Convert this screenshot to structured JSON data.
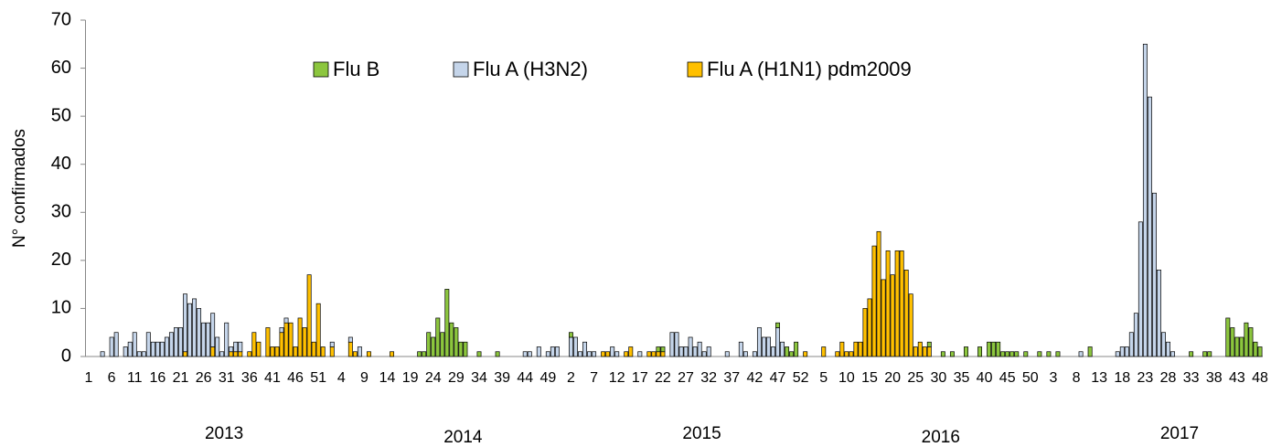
{
  "chart_data": {
    "type": "bar",
    "stacked": true,
    "y_label": "N° confirmados",
    "ylim": [
      0,
      70
    ],
    "yticks": [
      0,
      10,
      20,
      30,
      40,
      50,
      60,
      70
    ],
    "year_labels": [
      "2013",
      "2014",
      "2015",
      "2016",
      "2017"
    ],
    "categories": [
      1,
      null,
      null,
      null,
      null,
      6,
      null,
      null,
      null,
      null,
      11,
      null,
      null,
      null,
      null,
      16,
      null,
      null,
      null,
      null,
      21,
      null,
      null,
      null,
      null,
      26,
      null,
      null,
      null,
      null,
      31,
      null,
      null,
      null,
      null,
      36,
      null,
      null,
      null,
      null,
      41,
      null,
      null,
      null,
      null,
      46,
      null,
      null,
      null,
      null,
      51,
      null,
      null,
      null,
      null,
      4,
      null,
      null,
      null,
      null,
      9,
      null,
      null,
      null,
      null,
      14,
      null,
      null,
      null,
      null,
      19,
      null,
      null,
      null,
      null,
      24,
      null,
      null,
      null,
      null,
      29,
      null,
      null,
      null,
      null,
      34,
      null,
      null,
      null,
      null,
      39,
      null,
      null,
      null,
      null,
      44,
      null,
      null,
      null,
      null,
      49,
      null,
      null,
      null,
      null,
      2,
      null,
      null,
      null,
      null,
      7,
      null,
      null,
      null,
      null,
      12,
      null,
      null,
      null,
      null,
      17,
      null,
      null,
      null,
      null,
      22,
      null,
      null,
      null,
      null,
      27,
      null,
      null,
      null,
      null,
      32,
      null,
      null,
      null,
      null,
      37,
      null,
      null,
      null,
      null,
      42,
      null,
      null,
      null,
      null,
      47,
      null,
      null,
      null,
      null,
      52,
      null,
      null,
      null,
      null,
      5,
      null,
      null,
      null,
      null,
      10,
      null,
      null,
      null,
      null,
      15,
      null,
      null,
      null,
      null,
      20,
      null,
      null,
      null,
      null,
      25,
      null,
      null,
      null,
      null,
      30,
      null,
      null,
      null,
      null,
      35,
      null,
      null,
      null,
      null,
      40,
      null,
      null,
      null,
      null,
      45,
      null,
      null,
      null,
      null,
      50,
      null,
      null,
      null,
      null,
      3,
      null,
      null,
      null,
      null,
      8,
      null,
      null,
      null,
      null,
      13,
      null,
      null,
      null,
      null,
      18,
      null,
      null,
      null,
      null,
      23,
      null,
      null,
      null,
      null,
      28,
      null,
      null,
      null,
      null,
      33,
      null,
      null,
      null,
      null,
      38,
      null,
      null,
      null,
      null,
      43,
      null,
      null,
      null,
      null,
      48
    ],
    "series": [
      {
        "name": "Flu A (H1N1) pdm2009",
        "color": "#ffc000",
        "values": [
          0,
          0,
          0,
          0,
          0,
          0,
          0,
          0,
          0,
          0,
          0,
          0,
          0,
          0,
          0,
          0,
          0,
          0,
          0,
          0,
          0,
          1,
          0,
          0,
          0,
          0,
          0,
          2,
          0,
          0,
          0,
          1,
          1,
          1,
          0,
          1,
          5,
          3,
          0,
          6,
          2,
          2,
          5,
          7,
          7,
          2,
          8,
          6,
          17,
          3,
          11,
          2,
          0,
          2,
          0,
          0,
          0,
          3,
          1,
          0,
          0,
          1,
          0,
          0,
          0,
          0,
          1,
          0,
          0,
          0,
          0,
          0,
          0,
          0,
          0,
          0,
          0,
          0,
          0,
          0,
          0,
          0,
          0,
          0,
          0,
          0,
          0,
          0,
          0,
          0,
          0,
          0,
          0,
          0,
          0,
          0,
          0,
          0,
          0,
          0,
          0,
          0,
          0,
          0,
          0,
          0,
          0,
          0,
          0,
          0,
          0,
          0,
          1,
          1,
          0,
          0,
          0,
          1,
          2,
          0,
          0,
          0,
          1,
          1,
          1,
          1,
          0,
          0,
          0,
          0,
          0,
          0,
          0,
          0,
          0,
          0,
          0,
          0,
          0,
          0,
          0,
          0,
          0,
          0,
          0,
          0,
          0,
          0,
          0,
          0,
          0,
          0,
          0,
          0,
          0,
          0,
          1,
          0,
          0,
          0,
          2,
          0,
          0,
          1,
          3,
          1,
          1,
          3,
          3,
          10,
          12,
          23,
          26,
          16,
          22,
          17,
          22,
          22,
          18,
          13,
          2,
          3,
          2,
          2,
          0,
          0,
          0,
          0,
          0,
          0,
          0,
          0,
          0,
          0,
          0,
          0,
          0,
          0,
          0,
          0,
          0,
          0,
          0,
          0,
          0,
          0,
          0,
          0,
          0,
          0,
          0,
          0,
          0,
          0,
          0,
          0,
          0,
          0,
          0,
          0,
          0,
          0,
          0,
          0,
          0,
          0,
          0,
          0,
          0,
          0,
          0,
          0,
          0,
          0,
          0,
          0,
          0,
          0,
          0,
          0,
          0,
          0,
          0,
          0,
          0,
          0,
          0,
          0,
          0,
          0,
          0,
          0,
          0,
          0,
          0,
          0
        ]
      },
      {
        "name": "Flu A (H3N2)",
        "color": "#c5d5ea",
        "values": [
          0,
          0,
          0,
          1,
          0,
          4,
          5,
          0,
          2,
          3,
          5,
          1,
          1,
          5,
          3,
          3,
          3,
          4,
          5,
          6,
          6,
          12,
          11,
          12,
          10,
          7,
          7,
          7,
          4,
          1,
          7,
          1,
          2,
          2,
          0,
          0,
          0,
          0,
          0,
          0,
          0,
          0,
          1,
          1,
          0,
          0,
          0,
          0,
          0,
          0,
          0,
          0,
          0,
          1,
          0,
          0,
          0,
          1,
          0,
          2,
          0,
          0,
          0,
          0,
          0,
          0,
          0,
          0,
          0,
          0,
          0,
          0,
          0,
          0,
          0,
          0,
          0,
          0,
          0,
          0,
          0,
          0,
          0,
          0,
          0,
          0,
          0,
          0,
          0,
          0,
          0,
          0,
          0,
          0,
          0,
          1,
          1,
          0,
          2,
          0,
          1,
          2,
          2,
          0,
          0,
          4,
          4,
          1,
          3,
          1,
          1,
          0,
          0,
          0,
          2,
          1,
          0,
          0,
          0,
          0,
          1,
          0,
          0,
          0,
          0,
          0,
          0,
          5,
          5,
          2,
          2,
          4,
          2,
          3,
          1,
          2,
          0,
          0,
          0,
          1,
          0,
          0,
          3,
          1,
          0,
          1,
          6,
          4,
          4,
          2,
          6,
          3,
          0,
          0,
          0,
          0,
          0,
          0,
          0,
          0,
          0,
          0,
          0,
          0,
          0,
          0,
          0,
          0,
          0,
          0,
          0,
          0,
          0,
          0,
          0,
          0,
          0,
          0,
          0,
          0,
          0,
          0,
          0,
          0,
          0,
          0,
          0,
          0,
          0,
          0,
          0,
          0,
          0,
          0,
          0,
          0,
          0,
          0,
          0,
          0,
          0,
          0,
          0,
          0,
          0,
          0,
          0,
          0,
          0,
          0,
          0,
          0,
          0,
          0,
          0,
          0,
          1,
          0,
          0,
          0,
          0,
          0,
          0,
          0,
          1,
          2,
          2,
          5,
          9,
          28,
          65,
          54,
          34,
          18,
          5,
          3,
          1,
          0,
          0,
          0,
          0,
          0,
          0,
          0,
          0,
          0,
          0,
          0,
          0,
          0,
          0,
          0,
          0,
          0,
          0,
          0
        ]
      },
      {
        "name": "Flu B",
        "color": "#8cc63e",
        "values": [
          0,
          0,
          0,
          0,
          0,
          0,
          0,
          0,
          0,
          0,
          0,
          0,
          0,
          0,
          0,
          0,
          0,
          0,
          0,
          0,
          0,
          0,
          0,
          0,
          0,
          0,
          0,
          0,
          0,
          0,
          0,
          0,
          0,
          0,
          0,
          0,
          0,
          0,
          0,
          0,
          0,
          0,
          0,
          0,
          0,
          0,
          0,
          0,
          0,
          0,
          0,
          0,
          0,
          0,
          0,
          0,
          0,
          0,
          0,
          0,
          0,
          0,
          0,
          0,
          0,
          0,
          0,
          0,
          0,
          0,
          0,
          0,
          1,
          1,
          5,
          4,
          8,
          5,
          14,
          7,
          6,
          3,
          3,
          0,
          0,
          1,
          0,
          0,
          0,
          1,
          0,
          0,
          0,
          0,
          0,
          0,
          0,
          0,
          0,
          0,
          0,
          0,
          0,
          0,
          0,
          1,
          0,
          0,
          0,
          0,
          0,
          0,
          0,
          0,
          0,
          0,
          0,
          0,
          0,
          0,
          0,
          0,
          0,
          0,
          1,
          1,
          0,
          0,
          0,
          0,
          0,
          0,
          0,
          0,
          0,
          0,
          0,
          0,
          0,
          0,
          0,
          0,
          0,
          0,
          0,
          0,
          0,
          0,
          0,
          0,
          1,
          0,
          2,
          1,
          3,
          0,
          0,
          0,
          0,
          0,
          0,
          0,
          0,
          0,
          0,
          0,
          0,
          0,
          0,
          0,
          0,
          0,
          0,
          0,
          0,
          0,
          0,
          0,
          0,
          0,
          0,
          0,
          0,
          1,
          0,
          0,
          1,
          0,
          1,
          0,
          0,
          2,
          0,
          0,
          2,
          0,
          3,
          3,
          3,
          1,
          1,
          1,
          1,
          0,
          1,
          0,
          0,
          1,
          0,
          1,
          0,
          1,
          0,
          0,
          0,
          0,
          0,
          0,
          2,
          0,
          0,
          0,
          0,
          0,
          0,
          0,
          0,
          0,
          0,
          0,
          0,
          0,
          0,
          0,
          0,
          0,
          0,
          0,
          0,
          0,
          1,
          0,
          0,
          1,
          1,
          0,
          0,
          0,
          8,
          6,
          4,
          4,
          7,
          6,
          3,
          2
        ]
      }
    ],
    "legend_order": [
      2,
      1,
      0
    ]
  }
}
